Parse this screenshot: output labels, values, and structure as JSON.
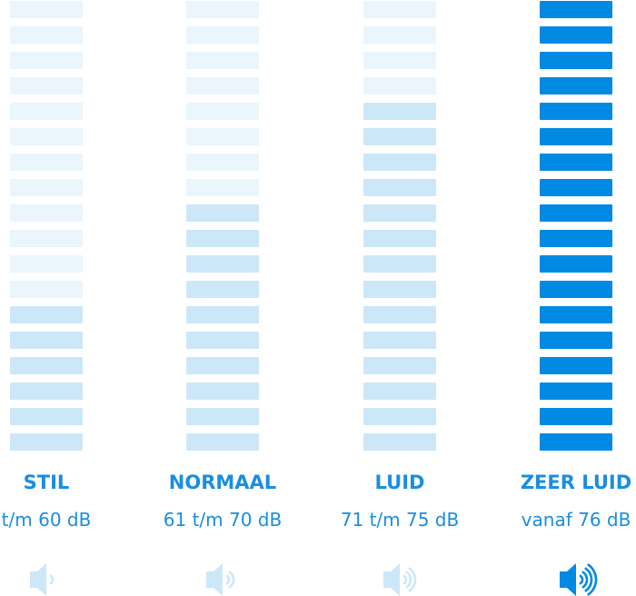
{
  "colors": {
    "pale": "#eaf5fc",
    "medium": "#cce8f8",
    "dark": "#008ae3",
    "text": "#1a8ee0"
  },
  "levels": [
    {
      "label": "STIL",
      "range": "t/m 60 dB",
      "total_bars": 18,
      "pale_bars": 12,
      "fill": "medium",
      "icon": "speaker-icon",
      "waves": 1
    },
    {
      "label": "NORMAAL",
      "range": "61 t/m 70 dB",
      "total_bars": 18,
      "pale_bars": 8,
      "fill": "medium",
      "icon": "speaker-icon",
      "waves": 2
    },
    {
      "label": "LUID",
      "range": "71 t/m 75 dB",
      "total_bars": 18,
      "pale_bars": 4,
      "fill": "medium",
      "icon": "speaker-icon",
      "waves": 3
    },
    {
      "label": "ZEER LUID",
      "range": "vanaf 76 dB",
      "total_bars": 18,
      "pale_bars": 0,
      "fill": "dark",
      "icon": "speaker-icon",
      "waves": 4
    }
  ]
}
